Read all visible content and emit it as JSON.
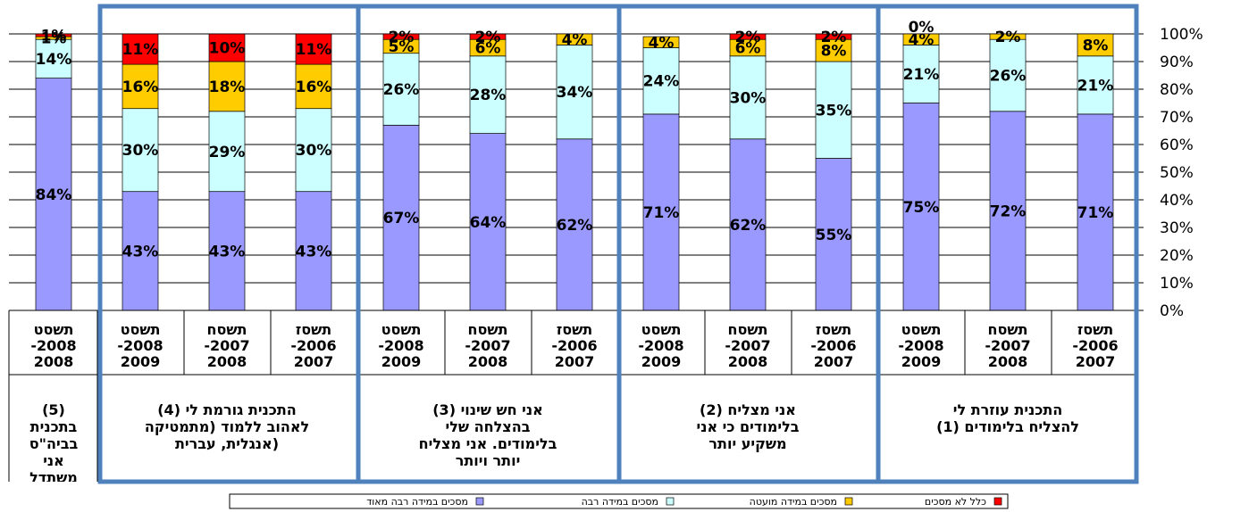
{
  "chart_data": {
    "type": "bar",
    "stacked": true,
    "groups": [
      {
        "label": "התכנית עוזרת לי (1) להצליח בלימודים",
        "categories": [
          "תשסז 2006-2007",
          "תשסח 2007-2008",
          "תשסט 2008-2009"
        ]
      },
      {
        "label": "אני מצליח (2) בלימודים כי אני משקיע יותר",
        "categories": [
          "תשסז 2006-2007",
          "תשסח 2007-2008",
          "תשסט 2008-2009"
        ]
      },
      {
        "label": "אני חש שינוי (3) בהצלחה שלי בלימודים. אני מצליח יותר ויותר",
        "categories": [
          "תשסז 2006-2007",
          "תשסח 2007-2008",
          "תשסט 2008-2009"
        ]
      },
      {
        "label": "התכנית גורמת לי (4) לאהוב ללמוד (מתמטיקה, אנגלית, עברית)",
        "categories": [
          "תשסז 2006-2007",
          "תשסח 2007-2008",
          "תשסט 2008-2009"
        ]
      },
      {
        "label": "(5) בתכנית בביה\"ס אני משתדל",
        "categories": [
          "תשסט 2008-2008"
        ]
      }
    ],
    "categories": [
      "תשסז 2006-2007",
      "תשסח 2007-2008",
      "תשסט 2008-2009",
      "תשסז 2006-2007",
      "תשסח 2007-2008",
      "תשסט 2008-2009",
      "תשסז 2006-2007",
      "תשסח 2007-2008",
      "תשסט 2008-2009",
      "תשסז 2006-2007",
      "תשסח 2007-2008",
      "תשסט 2008-2009",
      "תשסט 2008-2008"
    ],
    "series": [
      {
        "name": "מסכים במידה רבה מאוד",
        "color": "#9999ff",
        "values": [
          71,
          72,
          75,
          55,
          62,
          71,
          62,
          64,
          67,
          43,
          43,
          43,
          84
        ]
      },
      {
        "name": "מסכים במידה רבה",
        "color": "#ccffff",
        "values": [
          21,
          26,
          21,
          35,
          30,
          24,
          34,
          28,
          26,
          30,
          29,
          30,
          14
        ]
      },
      {
        "name": "מסכים במידה מועטה",
        "color": "#ffcc00",
        "values": [
          8,
          2,
          4,
          8,
          6,
          4,
          4,
          6,
          5,
          16,
          18,
          16,
          1
        ]
      },
      {
        "name": "כלל לא מסכים",
        "color": "#ff0000",
        "values": [
          0,
          0,
          0,
          2,
          2,
          0,
          0,
          2,
          2,
          11,
          10,
          11,
          1
        ]
      }
    ],
    "data_labels": [
      [
        "71%",
        "72%",
        "75%",
        "55%",
        "62%",
        "71%",
        "62%",
        "64%",
        "67%",
        "43%",
        "43%",
        "43%",
        "84%"
      ],
      [
        "21%",
        "26%",
        "21%",
        "35%",
        "30%",
        "24%",
        "34%",
        "28%",
        "26%",
        "30%",
        "29%",
        "30%",
        "14%"
      ],
      [
        "8%",
        "2%",
        "4%",
        "8%",
        "6%",
        "4%",
        "4%",
        "6%",
        "5%",
        "16%",
        "18%",
        "16%",
        "1%"
      ],
      [
        "",
        "",
        "0%",
        "2%",
        "2%",
        "",
        "",
        "2%",
        "2%",
        "11%",
        "10%",
        "11%",
        "1%"
      ]
    ],
    "ylim": [
      0,
      100
    ],
    "yticks": [
      "0%",
      "10%",
      "20%",
      "30%",
      "40%",
      "50%",
      "60%",
      "70%",
      "80%",
      "90%",
      "100%"
    ],
    "y_axis_side": "right",
    "grid": true,
    "legend_position": "bottom",
    "highlight_border_color": "#4f81bd",
    "title": "",
    "xlabel": "",
    "ylabel": ""
  }
}
